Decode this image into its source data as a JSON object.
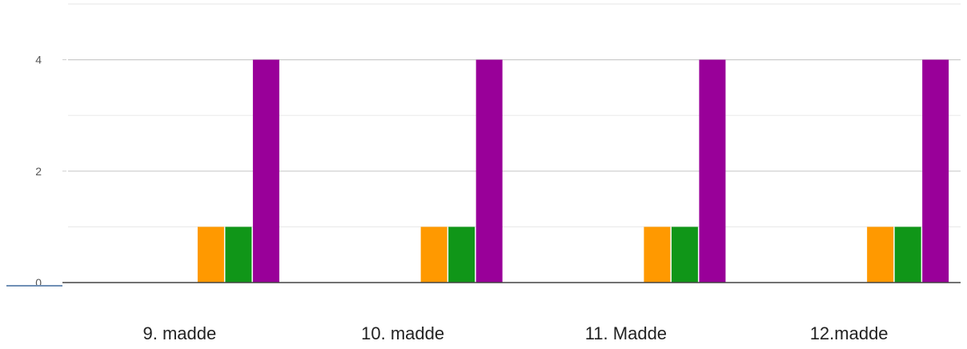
{
  "chart_data": {
    "type": "bar",
    "categories": [
      "9. madde",
      "10. madde",
      "11. Madde",
      "12.madde"
    ],
    "series": [
      {
        "values": [
          0,
          0,
          0,
          0
        ],
        "color": "#3366cc"
      },
      {
        "values": [
          0,
          0,
          0,
          0
        ],
        "color": "#dc3912"
      },
      {
        "values": [
          1,
          1,
          1,
          1
        ],
        "color": "#ff9900"
      },
      {
        "values": [
          1,
          1,
          1,
          1
        ],
        "color": "#109618"
      },
      {
        "values": [
          4,
          4,
          4,
          4
        ],
        "color": "#990099"
      }
    ],
    "ylim": [
      0,
      5
    ],
    "yticks": [
      0,
      2,
      4
    ],
    "ytick_labels": [
      "0",
      "2",
      "4"
    ],
    "grid": true,
    "title": "",
    "xlabel": "",
    "ylabel": ""
  }
}
